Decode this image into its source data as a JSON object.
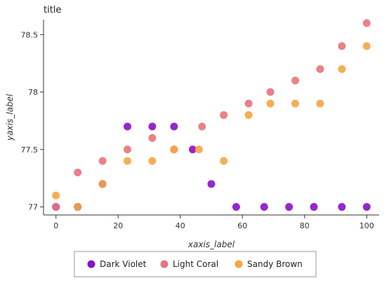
{
  "chart_data": {
    "type": "scatter",
    "title": "title",
    "xlabel": "xaxis_label",
    "ylabel": "yaxis_label",
    "xlim": [
      -4,
      104
    ],
    "ylim": [
      76.93,
      78.63
    ],
    "xticks": [
      0,
      20,
      40,
      60,
      80,
      100
    ],
    "yticks": [
      77,
      77.5,
      78,
      78.5
    ],
    "ytick_labels": [
      "77",
      "77.5",
      "78",
      "78.5"
    ],
    "grid": false,
    "legend_position": "bottom",
    "series": [
      {
        "name": "Dark Violet",
        "color": "#8B10C8",
        "x": [
          0,
          7,
          15,
          23,
          31,
          38,
          44,
          50,
          58,
          67,
          75,
          83,
          92,
          100
        ],
        "y": [
          77.0,
          77.0,
          77.2,
          77.7,
          77.7,
          77.7,
          77.5,
          77.2,
          77.0,
          77.0,
          77.0,
          77.0,
          77.0,
          77.0
        ]
      },
      {
        "name": "Light Coral",
        "color": "#E8737A",
        "x": [
          0,
          7,
          15,
          23,
          31,
          38,
          47,
          54,
          62,
          69,
          77,
          85,
          92,
          100
        ],
        "y": [
          77.0,
          77.3,
          77.4,
          77.5,
          77.6,
          77.5,
          77.7,
          77.8,
          77.9,
          78.0,
          78.1,
          78.2,
          78.4,
          78.6
        ]
      },
      {
        "name": "Sandy Brown",
        "color": "#F4A640",
        "x": [
          0,
          7,
          15,
          23,
          31,
          38,
          46,
          54,
          62,
          69,
          77,
          85,
          92,
          100
        ],
        "y": [
          77.1,
          77.0,
          77.2,
          77.4,
          77.4,
          77.5,
          77.5,
          77.4,
          77.8,
          77.9,
          77.9,
          77.9,
          78.2,
          78.4
        ]
      }
    ]
  }
}
